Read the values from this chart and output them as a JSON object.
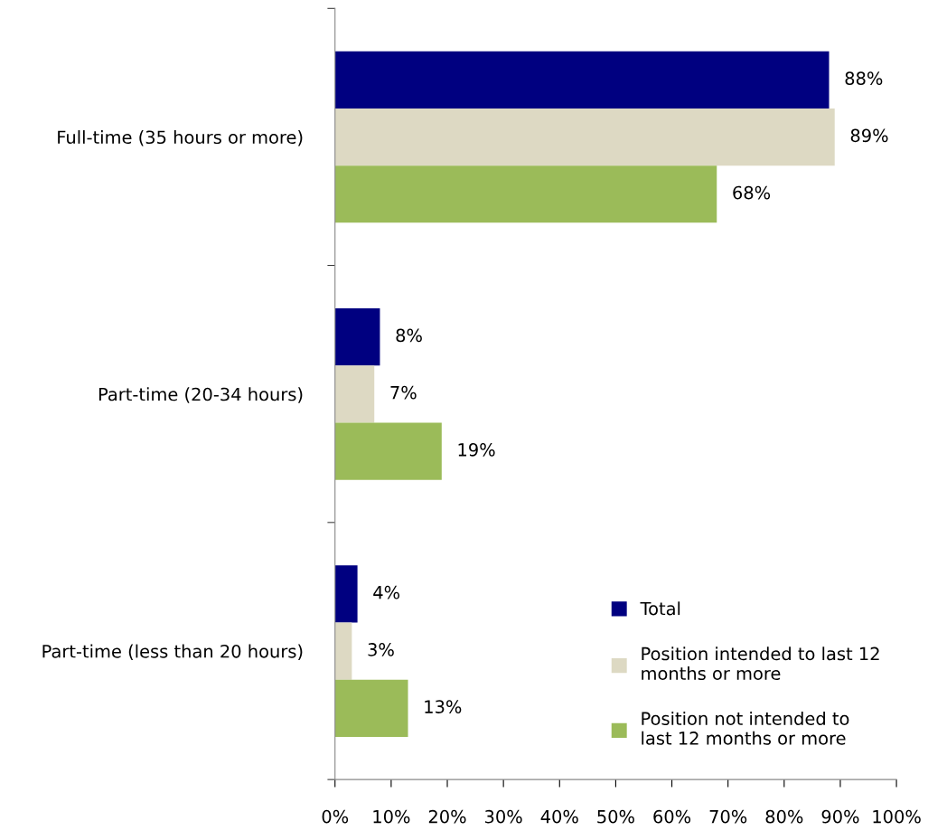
{
  "chart_data": {
    "type": "bar",
    "orientation": "horizontal",
    "categories": [
      "Full-time (35 hours or more)",
      "Part-time (20-34 hours)",
      "Part-time (less than 20 hours)"
    ],
    "series": [
      {
        "name": "Total",
        "color": "#000080",
        "values": [
          88,
          8,
          4
        ],
        "value_labels": [
          "88%",
          "8%",
          "4%"
        ]
      },
      {
        "name": "Position intended to last 12 months or more",
        "color": "#ddd9c3",
        "values": [
          89,
          7,
          3
        ],
        "value_labels": [
          "89%",
          "7%",
          "3%"
        ]
      },
      {
        "name": "Position not intended to last 12 months or more",
        "color": "#9bbb59",
        "values": [
          68,
          19,
          13
        ],
        "value_labels": [
          "68%",
          "19%",
          "13%"
        ]
      }
    ],
    "xlim": [
      0,
      100
    ],
    "xticks": [
      {
        "value": 0,
        "label": "0%"
      },
      {
        "value": 10,
        "label": "10%"
      },
      {
        "value": 20,
        "label": "20%"
      },
      {
        "value": 30,
        "label": "30%"
      },
      {
        "value": 40,
        "label": "40%"
      },
      {
        "value": 50,
        "label": "50%"
      },
      {
        "value": 60,
        "label": "60%"
      },
      {
        "value": 70,
        "label": "70%"
      },
      {
        "value": 80,
        "label": "80%"
      },
      {
        "value": 90,
        "label": "90%"
      },
      {
        "value": 100,
        "label": "100%"
      }
    ],
    "grid": false,
    "legend": "bottom right"
  }
}
